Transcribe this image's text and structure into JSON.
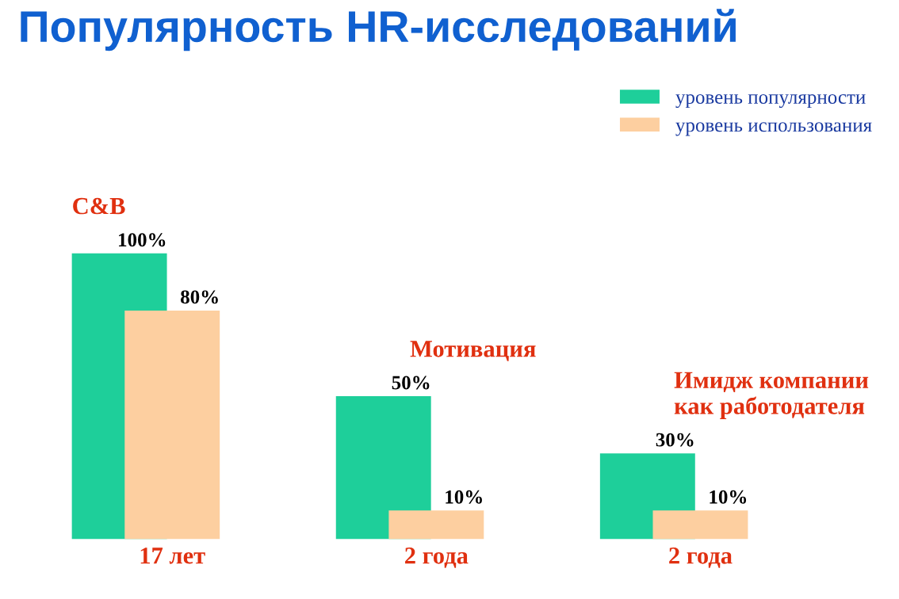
{
  "chart_data": {
    "type": "bar",
    "title": "Популярность HR-исследований",
    "categories": [
      "17 лет",
      "2 года",
      "2 года"
    ],
    "series": [
      {
        "name": "уровень популярности",
        "color": "#1ecf9a",
        "values": [
          100,
          50,
          30
        ],
        "value_labels": [
          "100%",
          "50%",
          "30%"
        ]
      },
      {
        "name": "уровень использования",
        "color": "#fdcfa0",
        "values": [
          80,
          10,
          10
        ],
        "value_labels": [
          "80%",
          "10%",
          "10%"
        ]
      }
    ],
    "annotations": [
      "C&B",
      "Мотивация",
      "Имидж компании\nкак работодателя"
    ],
    "legend": "top right",
    "grid": false
  }
}
